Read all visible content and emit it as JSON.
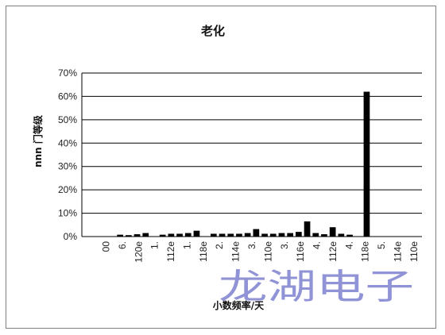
{
  "chart_data": {
    "type": "bar",
    "title": "老化",
    "xlabel": "小数频率/天",
    "ylabel": "nnn 门等级",
    "ylim": [
      0,
      70
    ],
    "yticks": [
      "0%",
      "10%",
      "20%",
      "30%",
      "40%",
      "50%",
      "60%",
      "70%"
    ],
    "x_tick_labels": [
      "",
      "00",
      "6.",
      "120e",
      "1.",
      "112e",
      "1.",
      "118e",
      "2.",
      "114e",
      "3.",
      "110e",
      "3.",
      "116e",
      "4.",
      "112e",
      "4.",
      "118e",
      "5.",
      "114e",
      "110e"
    ],
    "series": [
      {
        "values": [
          0,
          0,
          0,
          0,
          0.8,
          0.6,
          1.0,
          1.5,
          0,
          0.8,
          1.2,
          1.2,
          1.5,
          2.5,
          0,
          1.2,
          1.2,
          1.2,
          1.2,
          1.5,
          3.2,
          1.2,
          1.2,
          1.5,
          1.5,
          2.0,
          6.5,
          1.5,
          1.0,
          4.0,
          1.2,
          0.8,
          0,
          62,
          0,
          0,
          0,
          0,
          0,
          0
        ]
      }
    ],
    "colors": {
      "bar": "#000000",
      "grid": "#000000",
      "axis": "#000000"
    },
    "grid": true,
    "legend": "none"
  },
  "watermark": "龙湖电子"
}
